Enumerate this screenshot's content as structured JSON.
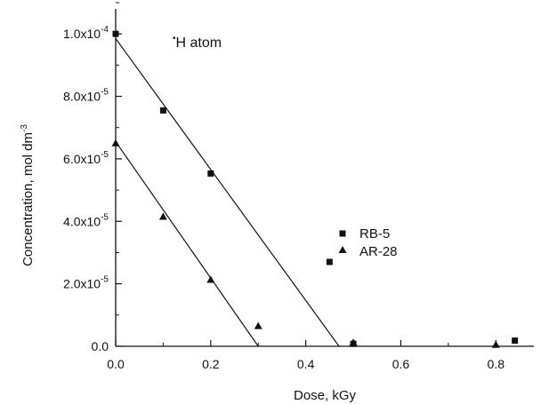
{
  "chart_data": {
    "type": "scatter",
    "title": "",
    "annotation": {
      "dot": "•",
      "text": "H  atom"
    },
    "xlabel": "Dose, kGy",
    "ylabel": {
      "base": "Concentration, mol dm",
      "exp": "-3"
    },
    "xlim": [
      0,
      0.88
    ],
    "ylim": [
      0,
      0.000108
    ],
    "x_ticks": [
      {
        "value": 0.0,
        "label": "0.0"
      },
      {
        "value": 0.2,
        "label": "0.2"
      },
      {
        "value": 0.4,
        "label": "0.4"
      },
      {
        "value": 0.6,
        "label": "0.6"
      },
      {
        "value": 0.8,
        "label": "0.8"
      }
    ],
    "y_ticks": [
      {
        "value": 0.0,
        "mant": "0.0",
        "exp": ""
      },
      {
        "value": 2e-05,
        "mant": "2.0x10",
        "exp": "-5"
      },
      {
        "value": 4e-05,
        "mant": "4.0x10",
        "exp": "-5"
      },
      {
        "value": 6e-05,
        "mant": "6.0x10",
        "exp": "-5"
      },
      {
        "value": 8e-05,
        "mant": "8.0x10",
        "exp": "-5"
      },
      {
        "value": 0.0001,
        "mant": "1.0x10",
        "exp": "-4"
      }
    ],
    "grid": false,
    "legend_position": "center-right",
    "series": [
      {
        "name": "RB-5",
        "marker": "square",
        "color": "#111111",
        "x": [
          0.0,
          0.1,
          0.2,
          0.45,
          0.5,
          0.84
        ],
        "y": [
          0.0001,
          7.55e-05,
          5.53e-05,
          2.7e-05,
          8e-07,
          1.8e-06
        ],
        "fit": {
          "x": [
            0.0,
            0.47
          ],
          "y": [
            9.85e-05,
            0.0
          ]
        }
      },
      {
        "name": "AR-28",
        "marker": "triangle",
        "color": "#111111",
        "x": [
          0.0,
          0.1,
          0.2,
          0.3,
          0.5,
          0.8
        ],
        "y": [
          6.5e-05,
          4.15e-05,
          2.13e-05,
          6.5e-06,
          1.2e-06,
          5e-07
        ],
        "fit": {
          "x": [
            0.0,
            0.3
          ],
          "y": [
            6.55e-05,
            0.0
          ]
        }
      }
    ]
  }
}
